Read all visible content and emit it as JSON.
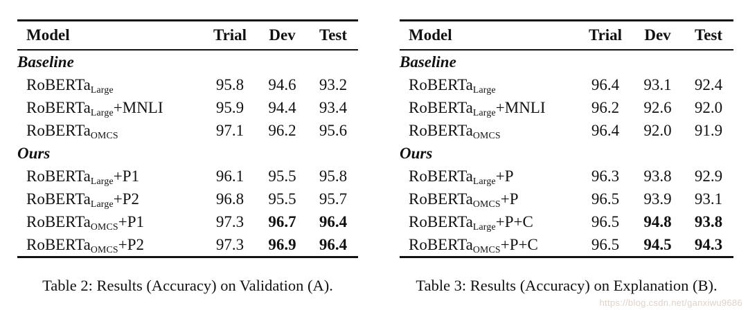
{
  "page": {
    "background": "#ffffff",
    "text_color": "#111111",
    "rule_color": "#111111"
  },
  "watermark": "https://blog.csdn.net/ganxiwu9686",
  "tables": [
    {
      "caption": "Table 2: Results (Accuracy) on Validation (A).",
      "headers": [
        "Model",
        "Trial",
        "Dev",
        "Test"
      ],
      "sections": [
        {
          "label": "Baseline",
          "rows": [
            {
              "model": {
                "base": "RoBERTa",
                "sub": "Large",
                "suffix": ""
              },
              "trial": "95.8",
              "dev": "94.6",
              "test": "93.2",
              "bold": []
            },
            {
              "model": {
                "base": "RoBERTa",
                "sub": "Large",
                "suffix": "+MNLI"
              },
              "trial": "95.9",
              "dev": "94.4",
              "test": "93.4",
              "bold": []
            },
            {
              "model": {
                "base": "RoBERTa",
                "sub": "OMCS",
                "suffix": ""
              },
              "trial": "97.1",
              "dev": "96.2",
              "test": "95.6",
              "bold": []
            }
          ]
        },
        {
          "label": "Ours",
          "rows": [
            {
              "model": {
                "base": "RoBERTa",
                "sub": "Large",
                "suffix": "+P1"
              },
              "trial": "96.1",
              "dev": "95.5",
              "test": "95.8",
              "bold": []
            },
            {
              "model": {
                "base": "RoBERTa",
                "sub": "Large",
                "suffix": "+P2"
              },
              "trial": "96.8",
              "dev": "95.5",
              "test": "95.7",
              "bold": []
            },
            {
              "model": {
                "base": "RoBERTa",
                "sub": "OMCS",
                "suffix": "+P1"
              },
              "trial": "97.3",
              "dev": "96.7",
              "test": "96.4",
              "bold": [
                "dev",
                "test"
              ]
            },
            {
              "model": {
                "base": "RoBERTa",
                "sub": "OMCS",
                "suffix": "+P2"
              },
              "trial": "97.3",
              "dev": "96.9",
              "test": "96.4",
              "bold": [
                "dev",
                "test"
              ]
            }
          ]
        }
      ]
    },
    {
      "caption": "Table 3: Results (Accuracy) on Explanation (B).",
      "headers": [
        "Model",
        "Trial",
        "Dev",
        "Test"
      ],
      "sections": [
        {
          "label": "Baseline",
          "rows": [
            {
              "model": {
                "base": "RoBERTa",
                "sub": "Large",
                "suffix": ""
              },
              "trial": "96.4",
              "dev": "93.1",
              "test": "92.4",
              "bold": []
            },
            {
              "model": {
                "base": "RoBERTa",
                "sub": "Large",
                "suffix": "+MNLI"
              },
              "trial": "96.2",
              "dev": "92.6",
              "test": "92.0",
              "bold": []
            },
            {
              "model": {
                "base": "RoBERTa",
                "sub": "OMCS",
                "suffix": ""
              },
              "trial": "96.4",
              "dev": "92.0",
              "test": "91.9",
              "bold": []
            }
          ]
        },
        {
          "label": "Ours",
          "rows": [
            {
              "model": {
                "base": "RoBERTa",
                "sub": "Large",
                "suffix": "+P"
              },
              "trial": "96.3",
              "dev": "93.8",
              "test": "92.9",
              "bold": []
            },
            {
              "model": {
                "base": "RoBERTa",
                "sub": "OMCS",
                "suffix": "+P"
              },
              "trial": "96.5",
              "dev": "93.9",
              "test": "93.1",
              "bold": []
            },
            {
              "model": {
                "base": "RoBERTa",
                "sub": "Large",
                "suffix": "+P+C"
              },
              "trial": "96.5",
              "dev": "94.8",
              "test": "93.8",
              "bold": [
                "dev",
                "test"
              ]
            },
            {
              "model": {
                "base": "RoBERTa",
                "sub": "OMCS",
                "suffix": "+P+C"
              },
              "trial": "96.5",
              "dev": "94.5",
              "test": "94.3",
              "bold": [
                "dev",
                "test"
              ]
            }
          ]
        }
      ]
    }
  ]
}
